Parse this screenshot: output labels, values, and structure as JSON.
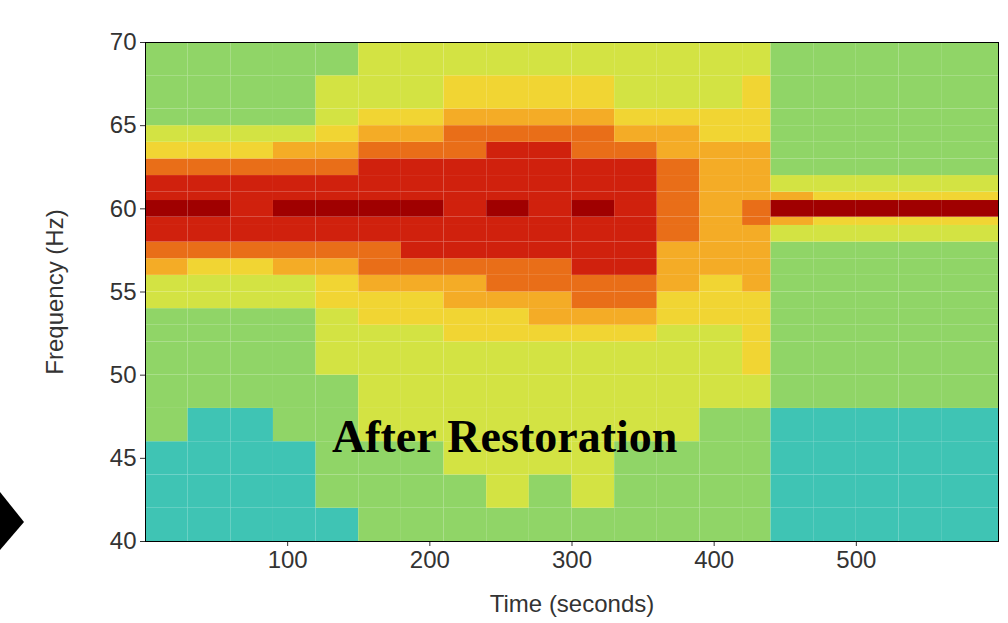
{
  "chart_data": {
    "type": "heatmap",
    "xlabel": "Time (seconds)",
    "ylabel": "Frequency (Hz)",
    "annotations": [
      "After Restoration"
    ],
    "xlim": [
      0,
      600
    ],
    "ylim": [
      40,
      70
    ],
    "xticks": [
      100,
      200,
      300,
      400,
      500
    ],
    "yticks": [
      40,
      45,
      50,
      55,
      60,
      65,
      70
    ],
    "grid": false,
    "time_bins": [
      0,
      30,
      60,
      90,
      120,
      150,
      180,
      210,
      240,
      270,
      300,
      330,
      360,
      390,
      420,
      440,
      470,
      500,
      530,
      560,
      600
    ],
    "freq_bins": [
      40,
      42,
      44,
      46,
      48,
      50,
      52,
      53,
      54,
      55,
      56,
      57,
      58,
      59,
      59.5,
      60.5,
      61,
      62,
      63,
      64,
      65,
      66,
      68,
      70
    ],
    "power": [
      [
        3,
        3,
        3,
        3,
        3,
        4,
        4,
        4,
        4,
        4,
        4,
        4,
        4,
        4,
        4,
        3,
        3,
        3,
        3,
        3
      ],
      [
        3,
        3,
        3,
        3,
        4,
        4,
        4,
        4,
        5,
        4,
        5,
        4,
        4,
        4,
        4,
        3,
        3,
        3,
        3,
        3
      ],
      [
        3,
        3,
        3,
        3,
        4,
        4,
        4,
        5,
        5,
        5,
        5,
        4,
        4,
        4,
        4,
        3,
        3,
        3,
        3,
        3
      ],
      [
        4,
        3,
        3,
        4,
        4,
        5,
        5,
        5,
        5,
        5,
        5,
        5,
        5,
        4,
        4,
        3,
        3,
        3,
        3,
        3
      ],
      [
        4,
        4,
        4,
        4,
        4,
        5,
        5,
        5,
        5,
        5,
        5,
        5,
        5,
        5,
        5,
        4,
        4,
        4,
        4,
        4
      ],
      [
        4,
        4,
        4,
        4,
        5,
        5,
        5,
        5,
        5,
        5,
        5,
        5,
        5,
        5,
        6,
        4,
        4,
        4,
        4,
        4
      ],
      [
        4,
        4,
        4,
        4,
        5,
        5,
        5,
        6,
        6,
        6,
        6,
        6,
        5,
        5,
        6,
        4,
        4,
        4,
        4,
        4
      ],
      [
        4,
        4,
        4,
        4,
        5,
        6,
        6,
        6,
        6,
        7,
        7,
        7,
        6,
        6,
        6,
        4,
        4,
        4,
        4,
        4
      ],
      [
        5,
        5,
        5,
        5,
        6,
        6,
        6,
        7,
        7,
        7,
        8,
        8,
        6,
        6,
        6,
        4,
        4,
        4,
        4,
        4
      ],
      [
        5,
        5,
        5,
        5,
        6,
        7,
        7,
        7,
        8,
        8,
        8,
        8,
        7,
        6,
        7,
        4,
        4,
        4,
        4,
        4
      ],
      [
        7,
        6,
        6,
        7,
        7,
        8,
        8,
        8,
        8,
        8,
        9,
        9,
        7,
        7,
        7,
        4,
        4,
        4,
        4,
        4
      ],
      [
        8,
        8,
        8,
        8,
        8,
        8,
        9,
        9,
        9,
        9,
        9,
        9,
        7,
        7,
        7,
        4,
        4,
        4,
        4,
        4
      ],
      [
        9,
        9,
        9,
        9,
        9,
        9,
        9,
        9,
        9,
        9,
        9,
        9,
        8,
        7,
        7,
        5,
        5,
        5,
        5,
        5
      ],
      [
        9,
        9,
        9,
        9,
        9,
        9,
        9,
        9,
        9,
        9,
        9,
        9,
        8,
        7,
        8,
        7,
        6,
        6,
        6,
        6
      ],
      [
        10,
        10,
        9,
        10,
        10,
        10,
        10,
        9,
        10,
        9,
        10,
        9,
        8,
        7,
        8,
        10,
        10,
        10,
        10,
        10
      ],
      [
        9,
        9,
        9,
        9,
        9,
        9,
        9,
        9,
        9,
        9,
        9,
        9,
        8,
        7,
        7,
        7,
        6,
        6,
        6,
        6
      ],
      [
        9,
        9,
        9,
        9,
        9,
        9,
        9,
        9,
        9,
        9,
        9,
        9,
        8,
        7,
        7,
        5,
        5,
        5,
        5,
        5
      ],
      [
        8,
        8,
        8,
        8,
        8,
        9,
        9,
        9,
        9,
        9,
        9,
        9,
        8,
        7,
        7,
        4,
        4,
        4,
        4,
        4
      ],
      [
        6,
        6,
        6,
        7,
        7,
        8,
        8,
        8,
        9,
        9,
        8,
        8,
        7,
        7,
        7,
        4,
        4,
        4,
        4,
        4
      ],
      [
        5,
        5,
        5,
        5,
        6,
        7,
        7,
        8,
        8,
        8,
        8,
        7,
        7,
        6,
        6,
        4,
        4,
        4,
        4,
        4
      ],
      [
        4,
        4,
        4,
        4,
        5,
        6,
        6,
        7,
        7,
        7,
        7,
        6,
        6,
        6,
        6,
        4,
        4,
        4,
        4,
        4
      ],
      [
        4,
        4,
        4,
        4,
        5,
        5,
        5,
        6,
        6,
        6,
        6,
        5,
        5,
        5,
        6,
        4,
        4,
        4,
        4,
        4
      ],
      [
        4,
        4,
        4,
        4,
        4,
        5,
        5,
        5,
        5,
        5,
        5,
        5,
        5,
        5,
        5,
        4,
        4,
        4,
        4,
        4
      ]
    ]
  }
}
